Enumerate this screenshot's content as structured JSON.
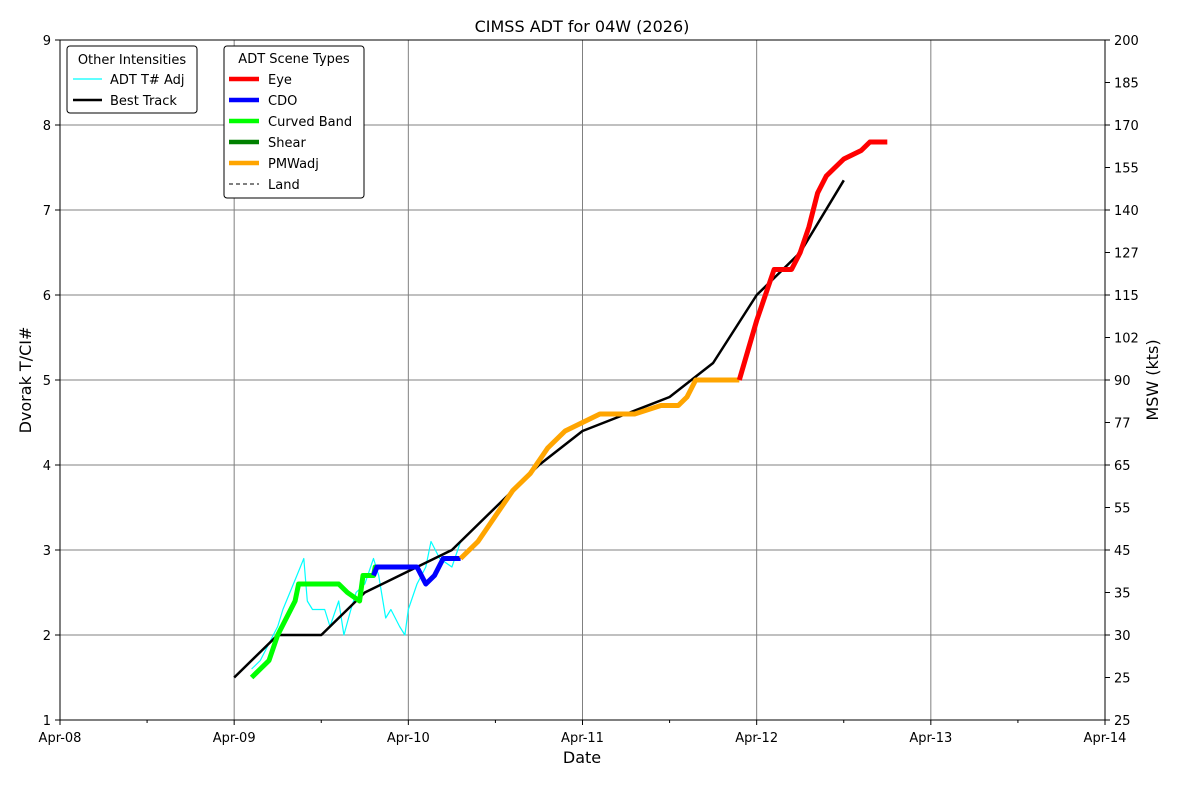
{
  "chart_data": {
    "type": "line",
    "title": "CIMSS ADT for 04W (2026)",
    "xlabel": "Date",
    "ylabel": "Dvorak T/CI#",
    "y2label": "MSW (kts)",
    "xlim": [
      0,
      6
    ],
    "x_ticks": [
      "Apr-08",
      "Apr-09",
      "Apr-10",
      "Apr-11",
      "Apr-12",
      "Apr-13",
      "Apr-14"
    ],
    "ylim": [
      1,
      9
    ],
    "y_ticks": [
      1,
      2,
      3,
      4,
      5,
      6,
      7,
      8,
      9
    ],
    "y2_ticks": [
      {
        "t": 1,
        "label": "25"
      },
      {
        "t": 1.5,
        "label": "25"
      },
      {
        "t": 2,
        "label": "30"
      },
      {
        "t": 2.5,
        "label": "35"
      },
      {
        "t": 3,
        "label": "45"
      },
      {
        "t": 3.5,
        "label": "55"
      },
      {
        "t": 4,
        "label": "65"
      },
      {
        "t": 4.5,
        "label": "77"
      },
      {
        "t": 5,
        "label": "90"
      },
      {
        "t": 5.5,
        "label": "102"
      },
      {
        "t": 6,
        "label": "115"
      },
      {
        "t": 6.5,
        "label": "127"
      },
      {
        "t": 7,
        "label": "140"
      },
      {
        "t": 7.5,
        "label": "155"
      },
      {
        "t": 8,
        "label": "170"
      },
      {
        "t": 8.5,
        "label": "185"
      },
      {
        "t": 9,
        "label": "200"
      }
    ],
    "grid": true,
    "legend_other": {
      "title": "Other Intensities",
      "entries": [
        {
          "label": "ADT T# Adj",
          "color": "#00ffff"
        },
        {
          "label": "Best Track",
          "color": "#000000"
        }
      ]
    },
    "legend_scene": {
      "title": "ADT Scene Types",
      "entries": [
        {
          "label": "Eye",
          "color": "#ff0000",
          "dash": false
        },
        {
          "label": "CDO",
          "color": "#0000ff",
          "dash": false
        },
        {
          "label": "Curved Band",
          "color": "#00ff00",
          "dash": false
        },
        {
          "label": "Shear",
          "color": "#008000",
          "dash": false
        },
        {
          "label": "PMWadj",
          "color": "#ffa500",
          "dash": false
        },
        {
          "label": "Land",
          "color": "#000000",
          "dash": true
        }
      ]
    },
    "series": [
      {
        "name": "Best Track",
        "color": "#000000",
        "points": [
          [
            1.0,
            1.5
          ],
          [
            1.25,
            2.0
          ],
          [
            1.5,
            2.0
          ],
          [
            1.75,
            2.5
          ],
          [
            2.0,
            2.75
          ],
          [
            2.25,
            3.0
          ],
          [
            2.5,
            3.5
          ],
          [
            2.75,
            4.0
          ],
          [
            3.0,
            4.4
          ],
          [
            3.25,
            4.6
          ],
          [
            3.5,
            4.8
          ],
          [
            3.75,
            5.2
          ],
          [
            4.0,
            6.0
          ],
          [
            4.25,
            6.5
          ],
          [
            4.5,
            7.35
          ]
        ]
      },
      {
        "name": "ADT T# Adj",
        "color": "#00ffff",
        "points": [
          [
            1.1,
            1.6
          ],
          [
            1.15,
            1.7
          ],
          [
            1.2,
            1.9
          ],
          [
            1.25,
            2.1
          ],
          [
            1.28,
            2.3
          ],
          [
            1.32,
            2.5
          ],
          [
            1.36,
            2.7
          ],
          [
            1.4,
            2.9
          ],
          [
            1.42,
            2.4
          ],
          [
            1.45,
            2.3
          ],
          [
            1.52,
            2.3
          ],
          [
            1.55,
            2.1
          ],
          [
            1.6,
            2.4
          ],
          [
            1.63,
            2.0
          ],
          [
            1.67,
            2.3
          ],
          [
            1.7,
            2.5
          ],
          [
            1.75,
            2.6
          ],
          [
            1.8,
            2.9
          ],
          [
            1.83,
            2.7
          ],
          [
            1.87,
            2.2
          ],
          [
            1.9,
            2.3
          ],
          [
            1.95,
            2.1
          ],
          [
            1.98,
            2.0
          ],
          [
            2.0,
            2.3
          ],
          [
            2.05,
            2.6
          ],
          [
            2.1,
            2.8
          ],
          [
            2.13,
            3.1
          ],
          [
            2.18,
            2.9
          ],
          [
            2.25,
            2.8
          ],
          [
            2.3,
            3.1
          ]
        ]
      },
      {
        "name": "Curved Band",
        "color": "#00ff00",
        "points": [
          [
            1.1,
            1.5
          ],
          [
            1.15,
            1.6
          ],
          [
            1.2,
            1.7
          ],
          [
            1.25,
            2.0
          ],
          [
            1.3,
            2.2
          ],
          [
            1.35,
            2.4
          ],
          [
            1.37,
            2.6
          ],
          [
            1.5,
            2.6
          ],
          [
            1.6,
            2.6
          ],
          [
            1.65,
            2.5
          ],
          [
            1.72,
            2.4
          ],
          [
            1.74,
            2.7
          ],
          [
            1.8,
            2.7
          ],
          [
            1.81,
            2.8
          ],
          [
            2.05,
            2.8
          ]
        ]
      },
      {
        "name": "CDO",
        "color": "#0000ff",
        "points": [
          [
            1.8,
            2.7
          ],
          [
            1.82,
            2.8
          ],
          [
            2.05,
            2.8
          ],
          [
            2.1,
            2.6
          ],
          [
            2.15,
            2.7
          ],
          [
            2.2,
            2.9
          ],
          [
            2.3,
            2.9
          ]
        ]
      },
      {
        "name": "PMWadj",
        "color": "#ffa500",
        "points": [
          [
            2.3,
            2.9
          ],
          [
            2.4,
            3.1
          ],
          [
            2.5,
            3.4
          ],
          [
            2.6,
            3.7
          ],
          [
            2.7,
            3.9
          ],
          [
            2.8,
            4.2
          ],
          [
            2.9,
            4.4
          ],
          [
            3.0,
            4.5
          ],
          [
            3.1,
            4.6
          ],
          [
            3.3,
            4.6
          ],
          [
            3.45,
            4.7
          ],
          [
            3.55,
            4.7
          ],
          [
            3.6,
            4.8
          ],
          [
            3.65,
            5.0
          ],
          [
            3.9,
            5.0
          ]
        ]
      },
      {
        "name": "Eye",
        "color": "#ff0000",
        "points": [
          [
            3.9,
            5.0
          ],
          [
            4.0,
            5.7
          ],
          [
            4.05,
            6.0
          ],
          [
            4.1,
            6.3
          ],
          [
            4.2,
            6.3
          ],
          [
            4.25,
            6.5
          ],
          [
            4.3,
            6.8
          ],
          [
            4.35,
            7.2
          ],
          [
            4.4,
            7.4
          ],
          [
            4.45,
            7.5
          ],
          [
            4.5,
            7.6
          ],
          [
            4.6,
            7.7
          ],
          [
            4.65,
            7.8
          ],
          [
            4.75,
            7.8
          ]
        ]
      }
    ]
  }
}
